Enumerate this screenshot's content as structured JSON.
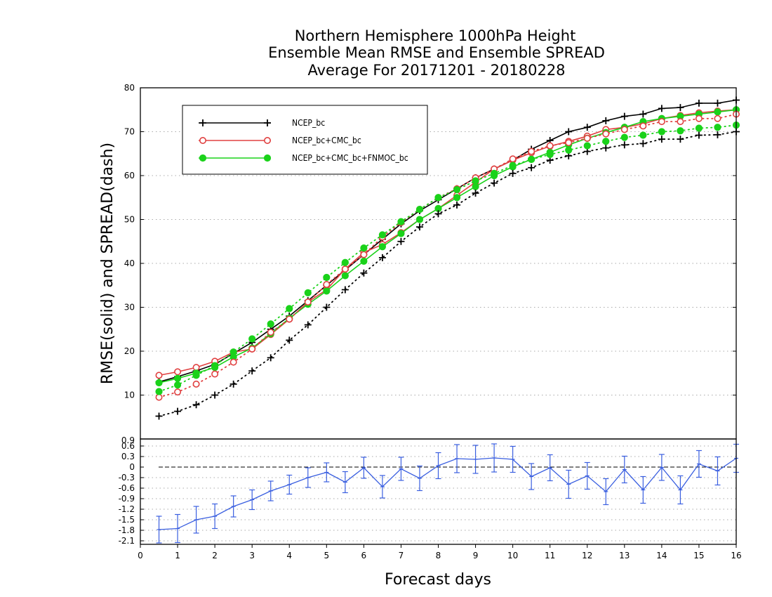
{
  "title_lines": [
    "Northern Hemisphere 1000hPa Height",
    "Ensemble Mean RMSE and Ensemble SPREAD",
    "Average For 20171201 - 20180228"
  ],
  "chart_data": [
    {
      "type": "line",
      "title": "Northern Hemisphere 1000hPa Height Ensemble Mean RMSE and Ensemble SPREAD Average For 20171201 - 20180228",
      "ylabel": "RMSE(solid) and SPREAD(dash)",
      "xlim": [
        0,
        16
      ],
      "ylim": [
        0,
        80
      ],
      "yticks": [
        10,
        20,
        30,
        40,
        50,
        60,
        70,
        80
      ],
      "grid": true,
      "legend_position": "top-left",
      "x": [
        0.5,
        1,
        1.5,
        2,
        2.5,
        3,
        3.5,
        4,
        4.5,
        5,
        5.5,
        6,
        6.5,
        7,
        7.5,
        8,
        8.5,
        9,
        9.5,
        10,
        10.5,
        11,
        11.5,
        12,
        12.5,
        13,
        13.5,
        14,
        14.5,
        15,
        15.5,
        16
      ],
      "series": [
        {
          "name": "NCEP_bc",
          "style": "solid",
          "marker": "plus",
          "color": "#000000",
          "values": [
            13.0,
            14.2,
            15.5,
            17.0,
            19.5,
            22.0,
            25.0,
            28.0,
            31.5,
            35.0,
            38.5,
            42.0,
            45.5,
            49.0,
            52.0,
            54.5,
            57.0,
            59.5,
            61.5,
            63.5,
            66.0,
            68.0,
            70.0,
            71.0,
            72.5,
            73.5,
            74.0,
            75.3,
            75.5,
            76.5,
            76.5,
            77.2
          ]
        },
        {
          "name": "NCEP_bc+CMC_bc",
          "style": "solid",
          "marker": "open-circle",
          "color": "#e04040",
          "values": [
            14.5,
            15.3,
            16.3,
            17.7,
            19.8,
            20.5,
            23.8,
            27.3,
            31.2,
            34.0,
            38.7,
            42.5,
            44.3,
            47.0,
            50.0,
            52.5,
            55.5,
            58.5,
            61.5,
            63.5,
            65.2,
            66.7,
            67.8,
            69.0,
            70.5,
            71.0,
            71.8,
            73.0,
            73.7,
            74.3,
            74.7,
            75.0
          ]
        },
        {
          "name": "NCEP_bc+CMC_bc+FNMOC_bc",
          "style": "solid",
          "marker": "filled-circle",
          "color": "#1ad21a",
          "values": [
            12.8,
            13.8,
            15.0,
            16.3,
            18.7,
            20.7,
            24.0,
            27.5,
            30.7,
            33.7,
            37.2,
            40.5,
            43.8,
            46.8,
            50.0,
            52.5,
            55.0,
            57.5,
            60.0,
            62.0,
            63.7,
            65.3,
            67.0,
            68.5,
            69.8,
            71.0,
            72.3,
            73.0,
            73.5,
            74.0,
            74.5,
            75.0
          ]
        },
        {
          "name": "NCEP_bc spread",
          "style": "dotted",
          "marker": "plus",
          "color": "#000000",
          "values": [
            5.2,
            6.3,
            7.8,
            10.0,
            12.5,
            15.5,
            18.5,
            22.5,
            26.0,
            30.0,
            34.0,
            37.8,
            41.3,
            45.0,
            48.3,
            51.3,
            53.3,
            56.0,
            58.3,
            60.5,
            61.8,
            63.5,
            64.5,
            65.5,
            66.3,
            67.0,
            67.3,
            68.3,
            68.3,
            69.2,
            69.3,
            70.0
          ]
        },
        {
          "name": "NCEP_bc+CMC_bc spread",
          "style": "dotted",
          "marker": "open-circle",
          "color": "#e04040",
          "values": [
            9.5,
            10.7,
            12.5,
            14.8,
            17.5,
            20.5,
            24.3,
            27.3,
            31.2,
            35.2,
            38.7,
            42.0,
            46.0,
            49.3,
            52.3,
            55.0,
            57.0,
            59.5,
            61.5,
            63.8,
            65.5,
            66.8,
            67.5,
            68.5,
            69.5,
            70.5,
            71.3,
            72.3,
            72.3,
            73.0,
            73.0,
            74.0
          ]
        },
        {
          "name": "NCEP_bc+CMC_bc+FNMOC_bc spread",
          "style": "dotted",
          "marker": "filled-circle",
          "color": "#1ad21a",
          "values": [
            10.8,
            12.3,
            14.5,
            16.7,
            19.8,
            22.8,
            26.2,
            29.7,
            33.3,
            36.8,
            40.2,
            43.5,
            46.5,
            49.5,
            52.3,
            55.0,
            56.8,
            58.8,
            60.5,
            62.3,
            63.7,
            64.8,
            65.8,
            66.8,
            67.8,
            68.7,
            69.2,
            70.0,
            70.2,
            70.8,
            71.0,
            71.5
          ]
        }
      ]
    },
    {
      "type": "line",
      "xlabel": "Forecast days",
      "xlim": [
        0,
        16
      ],
      "xticks": [
        0,
        1,
        2,
        3,
        4,
        5,
        6,
        7,
        8,
        9,
        10,
        11,
        12,
        13,
        14,
        15,
        16
      ],
      "ylim": [
        -2.2,
        0.8
      ],
      "yticks": [
        "0.6",
        "0.3",
        "0",
        "-0.3",
        "-0.6",
        "-0.9",
        "-1.2",
        "-1.5",
        "-1.8",
        "-2.1"
      ],
      "ytick_values": [
        0.6,
        0.3,
        0,
        -0.3,
        -0.6,
        -0.9,
        -1.2,
        -1.5,
        -1.8,
        -2.1
      ],
      "top_tick_label": "0.9",
      "zero_line": "dashed",
      "grid": true,
      "color": "#3a5fe0",
      "x": [
        0.5,
        1,
        1.5,
        2,
        2.5,
        3,
        3.5,
        4,
        4.5,
        5,
        5.5,
        6,
        6.5,
        7,
        7.5,
        8,
        8.5,
        9,
        9.5,
        10,
        10.5,
        11,
        11.5,
        12,
        12.5,
        13,
        13.5,
        14,
        14.5,
        15,
        15.5,
        16
      ],
      "values": [
        -1.78,
        -1.75,
        -1.5,
        -1.4,
        -1.12,
        -0.93,
        -0.68,
        -0.5,
        -0.3,
        -0.15,
        -0.43,
        -0.02,
        -0.56,
        -0.05,
        -0.32,
        0.04,
        0.24,
        0.22,
        0.26,
        0.22,
        -0.27,
        -0.02,
        -0.49,
        -0.25,
        -0.7,
        -0.07,
        -0.65,
        -0.01,
        -0.65,
        0.09,
        -0.11,
        0.25
      ],
      "error": [
        0.38,
        0.4,
        0.38,
        0.35,
        0.3,
        0.28,
        0.28,
        0.27,
        0.28,
        0.27,
        0.3,
        0.3,
        0.32,
        0.33,
        0.35,
        0.37,
        0.4,
        0.4,
        0.4,
        0.37,
        0.37,
        0.37,
        0.4,
        0.38,
        0.37,
        0.38,
        0.38,
        0.37,
        0.4,
        0.38,
        0.4,
        0.4
      ]
    }
  ]
}
